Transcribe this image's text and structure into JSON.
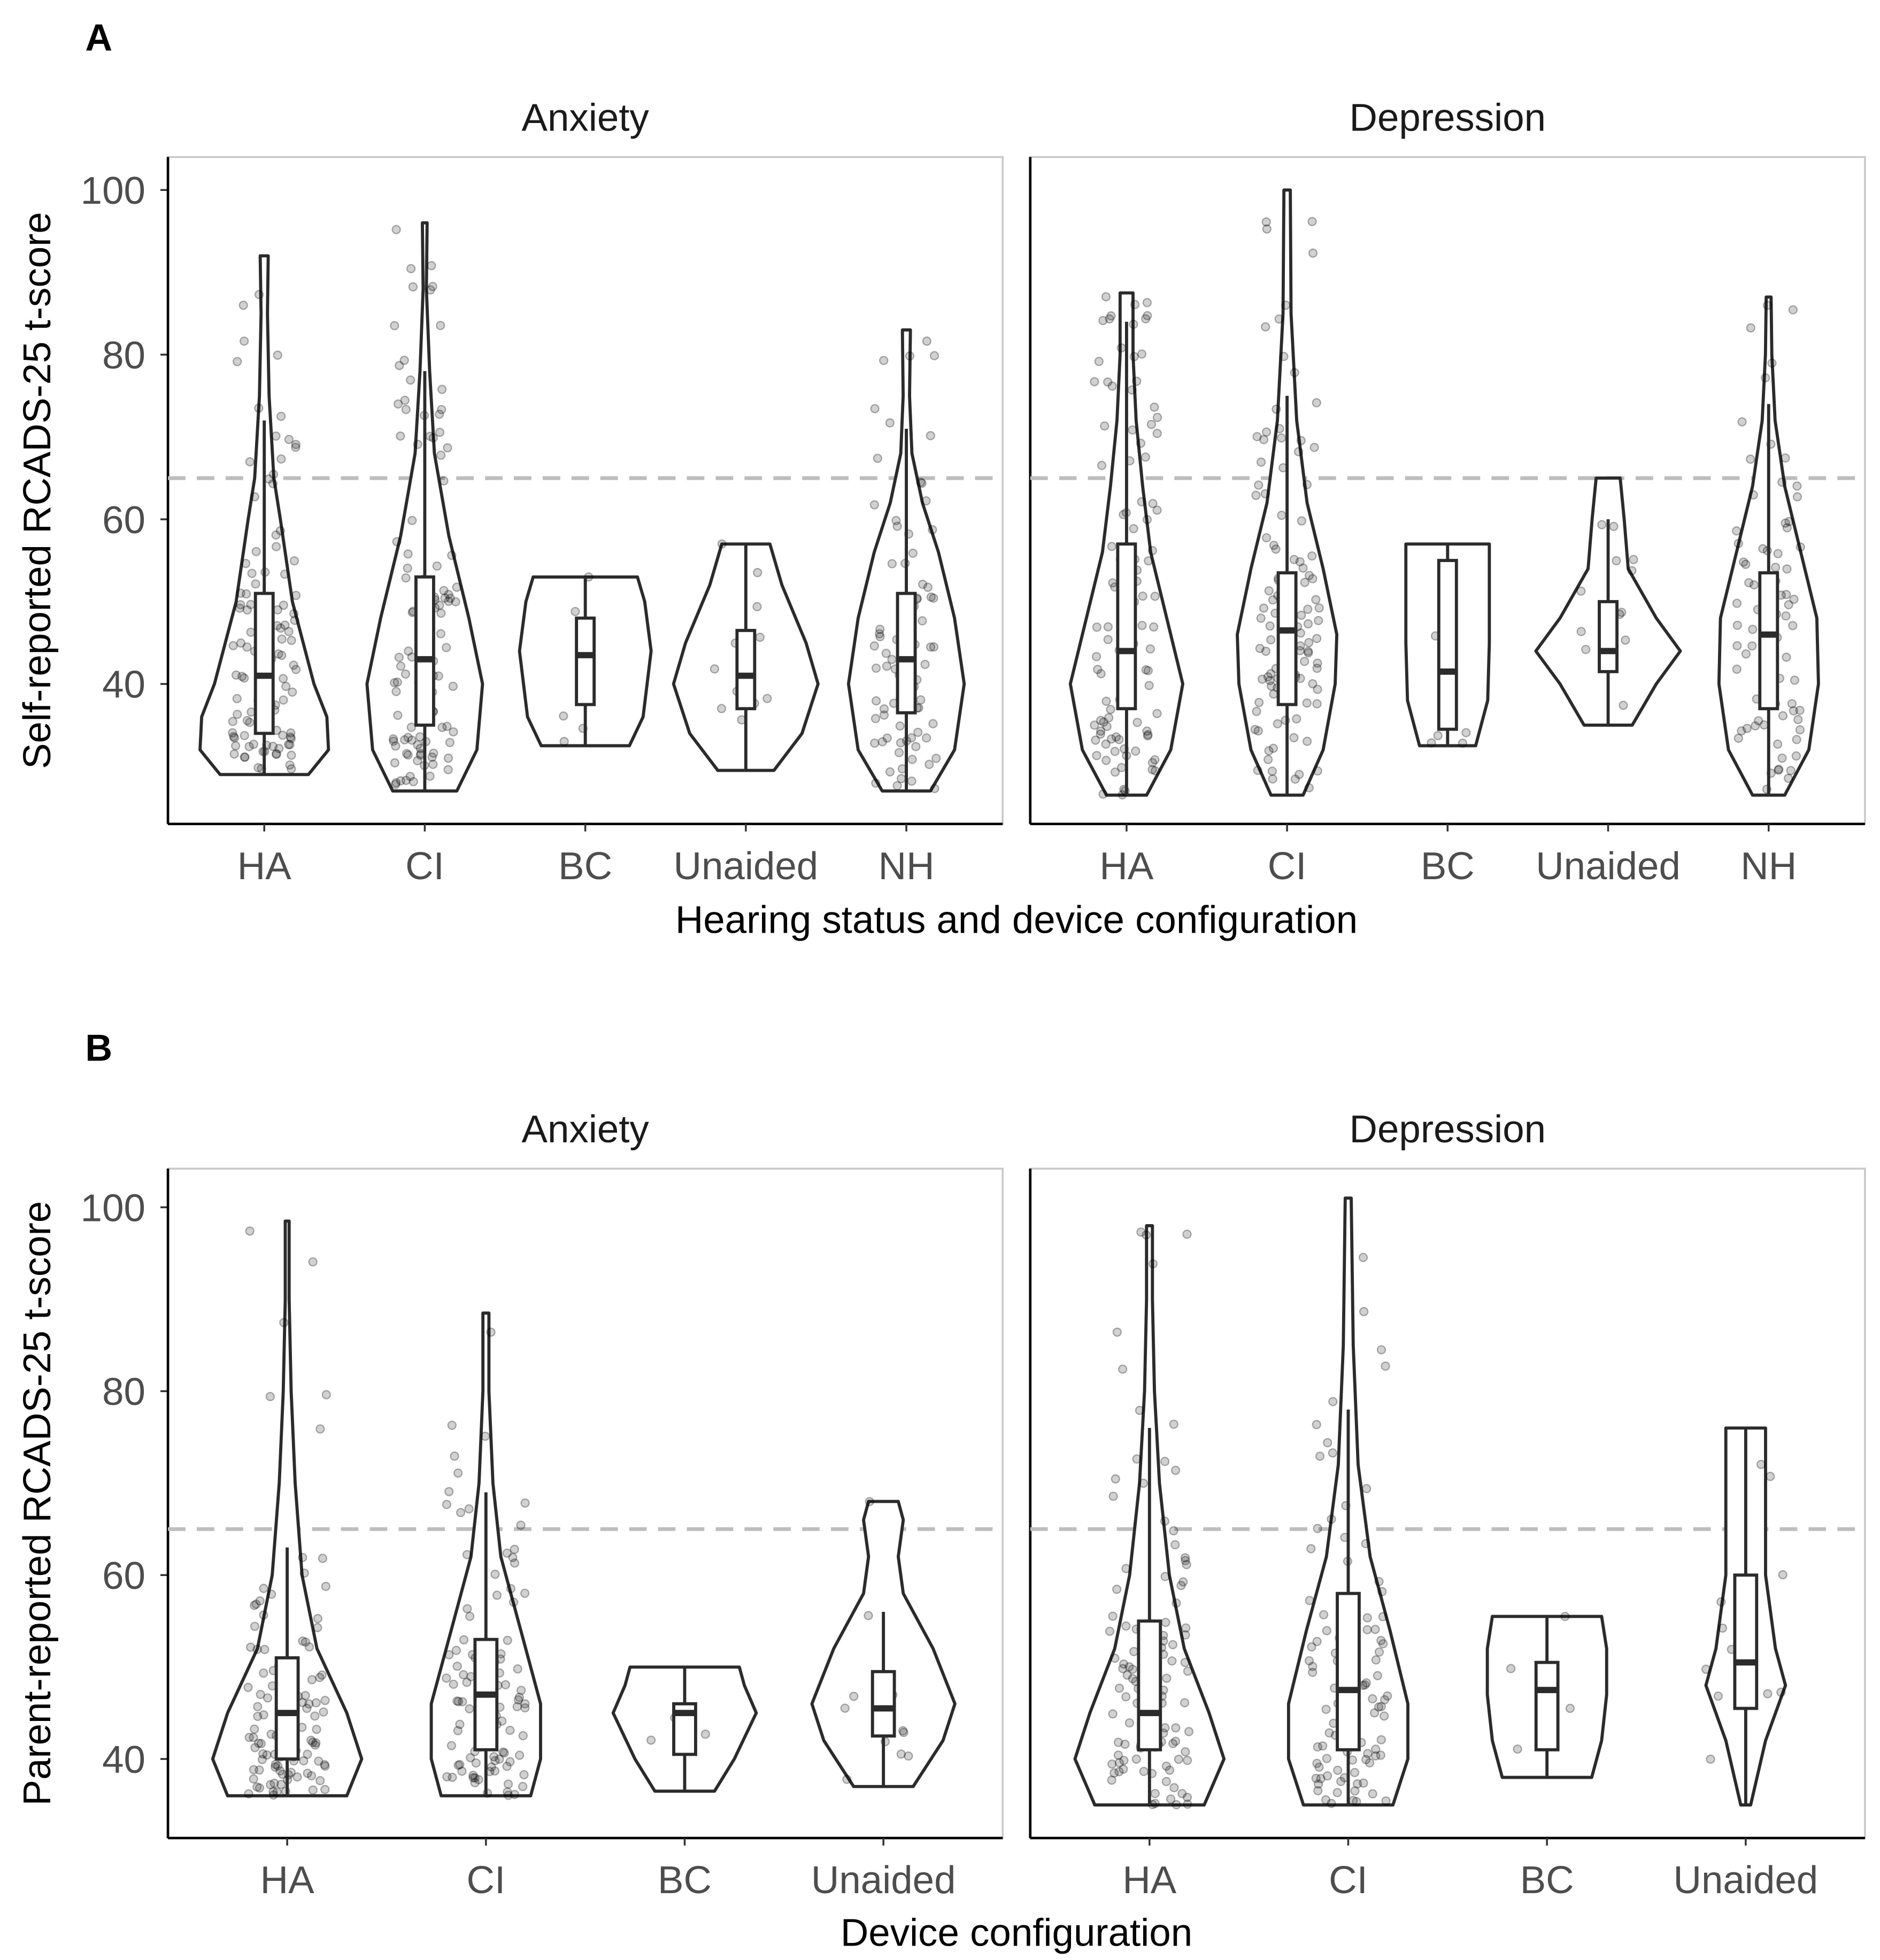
{
  "chart_data": [
    {
      "type": "violin",
      "panel_tag": "A",
      "ylabel": "Self-reported RCADS-25 t-score",
      "xlabel": "Hearing status and device configuration",
      "ylim": [
        23,
        104
      ],
      "yticks": [
        40,
        60,
        80,
        100
      ],
      "threshold": 65,
      "categories": [
        "HA",
        "CI",
        "BC",
        "Unaided",
        "NH"
      ],
      "facets": [
        {
          "title": "Anxiety",
          "groups": [
            {
              "box": [
                29,
                34,
                41,
                51,
                72
              ],
              "range": [
                29,
                92
              ],
              "density": [
                [
                  29,
                  0.55
                ],
                [
                  32,
                  0.8
                ],
                [
                  36,
                  0.78
                ],
                [
                  40,
                  0.62
                ],
                [
                  50,
                  0.35
                ],
                [
                  60,
                  0.2
                ],
                [
                  65,
                  0.12
                ],
                [
                  75,
                  0.06
                ],
                [
                  85,
                  0.04
                ],
                [
                  92,
                  0.05
                ]
              ],
              "n": 110
            },
            {
              "box": [
                27,
                35,
                43,
                53,
                78
              ],
              "range": [
                27,
                96
              ],
              "density": [
                [
                  27,
                  0.4
                ],
                [
                  32,
                  0.65
                ],
                [
                  40,
                  0.72
                ],
                [
                  48,
                  0.55
                ],
                [
                  58,
                  0.3
                ],
                [
                  68,
                  0.12
                ],
                [
                  78,
                  0.06
                ],
                [
                  88,
                  0.02
                ],
                [
                  96,
                  0.03
                ]
              ],
              "n": 110
            },
            {
              "box": [
                32.5,
                37.5,
                43.5,
                48,
                53
              ],
              "range": [
                32.5,
                53
              ],
              "density": [
                [
                  32.5,
                  0.55
                ],
                [
                  36,
                  0.72
                ],
                [
                  44,
                  0.82
                ],
                [
                  50,
                  0.74
                ],
                [
                  53,
                  0.65
                ]
              ],
              "n": 5
            },
            {
              "box": [
                29.5,
                37,
                41,
                46.5,
                57
              ],
              "range": [
                29.5,
                57
              ],
              "density": [
                [
                  29.5,
                  0.35
                ],
                [
                  34,
                  0.7
                ],
                [
                  40,
                  0.9
                ],
                [
                  45,
                  0.75
                ],
                [
                  52,
                  0.45
                ],
                [
                  57,
                  0.3
                ]
              ],
              "n": 12
            },
            {
              "box": [
                27,
                36.5,
                43,
                51,
                71
              ],
              "range": [
                27,
                83
              ],
              "density": [
                [
                  27,
                  0.3
                ],
                [
                  32,
                  0.6
                ],
                [
                  40,
                  0.72
                ],
                [
                  48,
                  0.6
                ],
                [
                  56,
                  0.4
                ],
                [
                  62,
                  0.2
                ],
                [
                  68,
                  0.07
                ],
                [
                  75,
                  0.04
                ],
                [
                  83,
                  0.05
                ]
              ],
              "n": 80
            }
          ]
        },
        {
          "title": "Depression",
          "groups": [
            {
              "box": [
                26.5,
                37,
                44,
                57,
                84
              ],
              "range": [
                26.5,
                87.5
              ],
              "density": [
                [
                  26.5,
                  0.25
                ],
                [
                  32,
                  0.55
                ],
                [
                  40,
                  0.7
                ],
                [
                  48,
                  0.5
                ],
                [
                  56,
                  0.3
                ],
                [
                  64,
                  0.2
                ],
                [
                  72,
                  0.12
                ],
                [
                  80,
                  0.08
                ],
                [
                  87.5,
                  0.08
                ]
              ],
              "n": 110
            },
            {
              "box": [
                26.5,
                37.5,
                46.5,
                53.5,
                75
              ],
              "range": [
                26.5,
                100
              ],
              "density": [
                [
                  26.5,
                  0.2
                ],
                [
                  32,
                  0.45
                ],
                [
                  40,
                  0.6
                ],
                [
                  46,
                  0.62
                ],
                [
                  54,
                  0.45
                ],
                [
                  62,
                  0.25
                ],
                [
                  72,
                  0.12
                ],
                [
                  85,
                  0.05
                ],
                [
                  100,
                  0.04
                ]
              ],
              "n": 110
            },
            {
              "box": [
                32.5,
                34.5,
                41.5,
                55,
                57
              ],
              "range": [
                32.5,
                57
              ],
              "density": [
                [
                  32.5,
                  0.35
                ],
                [
                  38,
                  0.5
                ],
                [
                  45,
                  0.52
                ],
                [
                  52,
                  0.52
                ],
                [
                  57,
                  0.52
                ]
              ],
              "n": 5
            },
            {
              "box": [
                35,
                41.5,
                44,
                50,
                60
              ],
              "range": [
                35,
                65
              ],
              "density": [
                [
                  35,
                  0.3
                ],
                [
                  40,
                  0.6
                ],
                [
                  44,
                  0.9
                ],
                [
                  48,
                  0.6
                ],
                [
                  54,
                  0.25
                ],
                [
                  60,
                  0.2
                ],
                [
                  65,
                  0.15
                ]
              ],
              "n": 12
            },
            {
              "box": [
                26.5,
                37,
                46,
                53.5,
                74
              ],
              "range": [
                26.5,
                87
              ],
              "density": [
                [
                  26.5,
                  0.2
                ],
                [
                  32,
                  0.5
                ],
                [
                  40,
                  0.62
                ],
                [
                  48,
                  0.6
                ],
                [
                  56,
                  0.4
                ],
                [
                  64,
                  0.2
                ],
                [
                  72,
                  0.08
                ],
                [
                  80,
                  0.04
                ],
                [
                  87,
                  0.03
                ]
              ],
              "n": 80
            }
          ]
        }
      ]
    },
    {
      "type": "violin",
      "panel_tag": "B",
      "ylabel": "Parent-reported RCADS-25 t-score",
      "xlabel": "Device configuration",
      "ylim": [
        31.4,
        104.2
      ],
      "yticks": [
        40,
        60,
        80,
        100
      ],
      "threshold": 65,
      "categories": [
        "HA",
        "CI",
        "BC",
        "Unaided"
      ],
      "facets": [
        {
          "title": "Anxiety",
          "groups": [
            {
              "box": [
                36,
                40,
                45,
                51,
                63
              ],
              "range": [
                36,
                98.5
              ],
              "density": [
                [
                  36,
                  0.6
                ],
                [
                  40,
                  0.75
                ],
                [
                  45,
                  0.6
                ],
                [
                  52,
                  0.3
                ],
                [
                  60,
                  0.15
                ],
                [
                  70,
                  0.08
                ],
                [
                  80,
                  0.04
                ],
                [
                  90,
                  0.02
                ],
                [
                  98.5,
                  0.02
                ]
              ],
              "n": 110
            },
            {
              "box": [
                36,
                41,
                47,
                53,
                69
              ],
              "range": [
                36,
                88.5
              ],
              "density": [
                [
                  36,
                  0.45
                ],
                [
                  40,
                  0.55
                ],
                [
                  46,
                  0.55
                ],
                [
                  54,
                  0.35
                ],
                [
                  62,
                  0.15
                ],
                [
                  70,
                  0.07
                ],
                [
                  80,
                  0.03
                ],
                [
                  88.5,
                  0.03
                ]
              ],
              "n": 100
            },
            {
              "box": [
                36.5,
                40.5,
                45,
                46,
                50
              ],
              "range": [
                36.5,
                50
              ],
              "density": [
                [
                  36.5,
                  0.3
                ],
                [
                  40,
                  0.5
                ],
                [
                  45,
                  0.72
                ],
                [
                  48,
                  0.6
                ],
                [
                  50,
                  0.55
                ]
              ],
              "n": 4
            },
            {
              "box": [
                37,
                42.5,
                45.5,
                49.5,
                56
              ],
              "range": [
                37,
                68
              ],
              "density": [
                [
                  37,
                  0.3
                ],
                [
                  42,
                  0.6
                ],
                [
                  46,
                  0.72
                ],
                [
                  52,
                  0.5
                ],
                [
                  58,
                  0.2
                ],
                [
                  62,
                  0.15
                ],
                [
                  66,
                  0.2
                ],
                [
                  68,
                  0.15
                ]
              ],
              "n": 12
            }
          ]
        },
        {
          "title": "Depression",
          "groups": [
            {
              "box": [
                35,
                41,
                45,
                55,
                76
              ],
              "range": [
                35,
                98
              ],
              "density": [
                [
                  35,
                  0.55
                ],
                [
                  40,
                  0.75
                ],
                [
                  45,
                  0.6
                ],
                [
                  52,
                  0.35
                ],
                [
                  60,
                  0.2
                ],
                [
                  70,
                  0.1
                ],
                [
                  80,
                  0.05
                ],
                [
                  90,
                  0.03
                ],
                [
                  98,
                  0.03
                ]
              ],
              "n": 110
            },
            {
              "box": [
                35,
                41,
                47.5,
                58,
                78
              ],
              "range": [
                35,
                101
              ],
              "density": [
                [
                  35,
                  0.45
                ],
                [
                  40,
                  0.6
                ],
                [
                  46,
                  0.6
                ],
                [
                  54,
                  0.42
                ],
                [
                  62,
                  0.22
                ],
                [
                  72,
                  0.1
                ],
                [
                  85,
                  0.05
                ],
                [
                  101,
                  0.03
                ]
              ],
              "n": 100
            },
            {
              "box": [
                38,
                41,
                47.5,
                50.5,
                55.5
              ],
              "range": [
                38,
                55.5
              ],
              "density": [
                [
                  38,
                  0.45
                ],
                [
                  42,
                  0.55
                ],
                [
                  47,
                  0.6
                ],
                [
                  52,
                  0.6
                ],
                [
                  55.5,
                  0.55
                ]
              ],
              "n": 4
            },
            {
              "box": [
                35,
                45.5,
                50.5,
                60,
                76
              ],
              "range": [
                35,
                76
              ],
              "density": [
                [
                  35,
                  0.05
                ],
                [
                  42,
                  0.2
                ],
                [
                  48,
                  0.4
                ],
                [
                  52,
                  0.3
                ],
                [
                  60,
                  0.2
                ],
                [
                  68,
                  0.2
                ],
                [
                  76,
                  0.2
                ]
              ],
              "n": 12
            }
          ]
        }
      ]
    }
  ]
}
